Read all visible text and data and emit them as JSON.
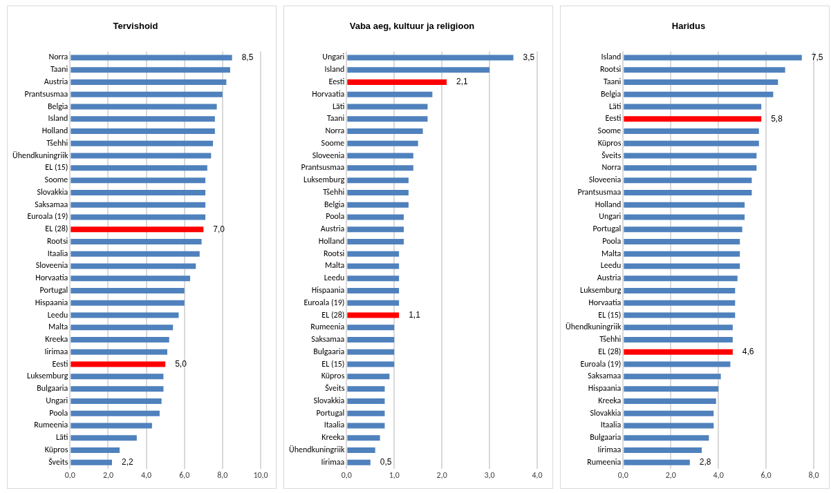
{
  "chart_data": [
    {
      "type": "bar",
      "orientation": "horizontal",
      "title": "Tervishoid",
      "grid": "x",
      "categories": [
        "Norra",
        "Taani",
        "Austria",
        "Prantsusmaa",
        "Belgia",
        "Island",
        "Holland",
        "Tšehhi",
        "Ühendkuningriik",
        "EL (15)",
        "Soome",
        "Slovakkia",
        "Saksamaa",
        "Euroala (19)",
        "EL (28)",
        "Rootsi",
        "Itaalia",
        "Sloveenia",
        "Horvaatia",
        "Portugal",
        "Hispaania",
        "Leedu",
        "Malta",
        "Kreeka",
        "Iirimaa",
        "Eesti",
        "Luksemburg",
        "Bulgaaria",
        "Ungari",
        "Poola",
        "Rumeenia",
        "Läti",
        "Küpros",
        "Šveits"
      ],
      "values": [
        8.5,
        8.4,
        8.2,
        8.0,
        7.7,
        7.6,
        7.6,
        7.5,
        7.4,
        7.2,
        7.1,
        7.1,
        7.1,
        7.1,
        7.0,
        6.9,
        6.8,
        6.6,
        6.3,
        6.0,
        6.0,
        5.7,
        5.4,
        5.2,
        5.1,
        5.0,
        4.9,
        4.9,
        4.8,
        4.7,
        4.3,
        3.5,
        2.6,
        2.2
      ],
      "colors": [
        "#4f81bd",
        "#4f81bd",
        "#4f81bd",
        "#4f81bd",
        "#4f81bd",
        "#4f81bd",
        "#4f81bd",
        "#4f81bd",
        "#4f81bd",
        "#4f81bd",
        "#4f81bd",
        "#4f81bd",
        "#4f81bd",
        "#4f81bd",
        "#ff0000",
        "#4f81bd",
        "#4f81bd",
        "#4f81bd",
        "#4f81bd",
        "#4f81bd",
        "#4f81bd",
        "#4f81bd",
        "#4f81bd",
        "#4f81bd",
        "#4f81bd",
        "#ff0000",
        "#4f81bd",
        "#4f81bd",
        "#4f81bd",
        "#4f81bd",
        "#4f81bd",
        "#4f81bd",
        "#4f81bd",
        "#4f81bd"
      ],
      "value_labels": [
        "8,5",
        null,
        null,
        null,
        null,
        null,
        null,
        null,
        null,
        null,
        null,
        null,
        null,
        null,
        "7,0",
        null,
        null,
        null,
        null,
        null,
        null,
        null,
        null,
        null,
        null,
        "5,0",
        null,
        null,
        null,
        null,
        null,
        null,
        null,
        "2,2"
      ],
      "xlim": [
        0,
        10
      ],
      "xticks": [
        {
          "value": 0,
          "label": "0,0"
        },
        {
          "value": 2,
          "label": "2,0"
        },
        {
          "value": 4,
          "label": "4,0"
        },
        {
          "value": 6,
          "label": "6,0"
        },
        {
          "value": 8,
          "label": "8,0"
        },
        {
          "value": 10,
          "label": "10,0"
        }
      ]
    },
    {
      "type": "bar",
      "orientation": "horizontal",
      "title": "Vaba aeg, kultuur ja religioon",
      "grid": "x",
      "categories": [
        "Ungari",
        "Island",
        "Eesti",
        "Horvaatia",
        "Läti",
        "Taani",
        "Norra",
        "Soome",
        "Sloveenia",
        "Prantsusmaa",
        "Luksemburg",
        "Tšehhi",
        "Belgia",
        "Poola",
        "Austria",
        "Holland",
        "Rootsi",
        "Malta",
        "Leedu",
        "Hispaania",
        "Euroala (19)",
        "EL (28)",
        "Rumeenia",
        "Saksamaa",
        "Bulgaaria",
        "EL (15)",
        "Küpros",
        "Šveits",
        "Slovakkia",
        "Portugal",
        "Itaalia",
        "Kreeka",
        "Ühendkuningriik",
        "Iirimaa"
      ],
      "values": [
        3.5,
        3.0,
        2.1,
        1.8,
        1.7,
        1.7,
        1.6,
        1.5,
        1.4,
        1.4,
        1.3,
        1.3,
        1.3,
        1.2,
        1.2,
        1.2,
        1.1,
        1.1,
        1.1,
        1.1,
        1.1,
        1.1,
        1.0,
        1.0,
        1.0,
        1.0,
        0.9,
        0.8,
        0.8,
        0.8,
        0.8,
        0.7,
        0.6,
        0.5
      ],
      "colors": [
        "#4f81bd",
        "#4f81bd",
        "#ff0000",
        "#4f81bd",
        "#4f81bd",
        "#4f81bd",
        "#4f81bd",
        "#4f81bd",
        "#4f81bd",
        "#4f81bd",
        "#4f81bd",
        "#4f81bd",
        "#4f81bd",
        "#4f81bd",
        "#4f81bd",
        "#4f81bd",
        "#4f81bd",
        "#4f81bd",
        "#4f81bd",
        "#4f81bd",
        "#4f81bd",
        "#ff0000",
        "#4f81bd",
        "#4f81bd",
        "#4f81bd",
        "#4f81bd",
        "#4f81bd",
        "#4f81bd",
        "#4f81bd",
        "#4f81bd",
        "#4f81bd",
        "#4f81bd",
        "#4f81bd",
        "#4f81bd"
      ],
      "value_labels": [
        "3,5",
        null,
        "2,1",
        null,
        null,
        null,
        null,
        null,
        null,
        null,
        null,
        null,
        null,
        null,
        null,
        null,
        null,
        null,
        null,
        null,
        null,
        "1,1",
        null,
        null,
        null,
        null,
        null,
        null,
        null,
        null,
        null,
        null,
        null,
        "0,5"
      ],
      "xlim": [
        0,
        4
      ],
      "xticks": [
        {
          "value": 0,
          "label": "0,0"
        },
        {
          "value": 1,
          "label": "1,0"
        },
        {
          "value": 2,
          "label": "2,0"
        },
        {
          "value": 3,
          "label": "3,0"
        },
        {
          "value": 4,
          "label": "4,0"
        }
      ]
    },
    {
      "type": "bar",
      "orientation": "horizontal",
      "title": "Haridus",
      "grid": "x",
      "categories": [
        "Island",
        "Rootsi",
        "Taani",
        "Belgia",
        "Läti",
        "Eesti",
        "Soome",
        "Küpros",
        "Šveits",
        "Norra",
        "Sloveenia",
        "Prantsusmaa",
        "Holland",
        "Ungari",
        "Portugal",
        "Poola",
        "Malta",
        "Leedu",
        "Austria",
        "Luksemburg",
        "Horvaatia",
        "EL (15)",
        "Ühendkuningriik",
        "Tšehhi",
        "EL (28)",
        "Euroala (19)",
        "Saksamaa",
        "Hispaania",
        "Kreeka",
        "Slovakkia",
        "Itaalia",
        "Bulgaaria",
        "Iirimaa",
        "Rumeenia"
      ],
      "values": [
        7.5,
        6.8,
        6.5,
        6.3,
        5.8,
        5.8,
        5.7,
        5.7,
        5.6,
        5.6,
        5.4,
        5.4,
        5.1,
        5.1,
        5.0,
        4.9,
        4.9,
        4.9,
        4.8,
        4.7,
        4.7,
        4.7,
        4.6,
        4.6,
        4.6,
        4.5,
        4.1,
        4.0,
        3.9,
        3.8,
        3.8,
        3.6,
        3.3,
        2.8
      ],
      "colors": [
        "#4f81bd",
        "#4f81bd",
        "#4f81bd",
        "#4f81bd",
        "#4f81bd",
        "#ff0000",
        "#4f81bd",
        "#4f81bd",
        "#4f81bd",
        "#4f81bd",
        "#4f81bd",
        "#4f81bd",
        "#4f81bd",
        "#4f81bd",
        "#4f81bd",
        "#4f81bd",
        "#4f81bd",
        "#4f81bd",
        "#4f81bd",
        "#4f81bd",
        "#4f81bd",
        "#4f81bd",
        "#4f81bd",
        "#4f81bd",
        "#ff0000",
        "#4f81bd",
        "#4f81bd",
        "#4f81bd",
        "#4f81bd",
        "#4f81bd",
        "#4f81bd",
        "#4f81bd",
        "#4f81bd",
        "#4f81bd"
      ],
      "value_labels": [
        "7,5",
        null,
        null,
        null,
        null,
        "5,8",
        null,
        null,
        null,
        null,
        null,
        null,
        null,
        null,
        null,
        null,
        null,
        null,
        null,
        null,
        null,
        null,
        null,
        null,
        "4,6",
        null,
        null,
        null,
        null,
        null,
        null,
        null,
        null,
        "2,8"
      ],
      "xlim": [
        0,
        8
      ],
      "xticks": [
        {
          "value": 0,
          "label": "0,0"
        },
        {
          "value": 2,
          "label": "2,0"
        },
        {
          "value": 4,
          "label": "4,0"
        },
        {
          "value": 6,
          "label": "6,0"
        },
        {
          "value": 8,
          "label": "8,0"
        }
      ]
    }
  ]
}
